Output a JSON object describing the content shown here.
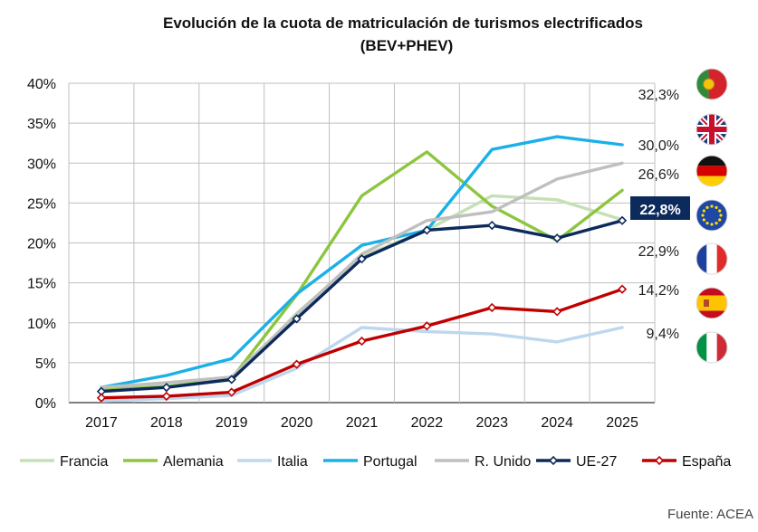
{
  "chart_data": {
    "type": "line",
    "title": "Evolución de la cuota de matriculación de turismos electrificados",
    "subtitle": "(BEV+PHEV)",
    "categories": [
      "2017",
      "2018",
      "2019",
      "2020",
      "2021",
      "2022",
      "2023",
      "2024",
      "2025"
    ],
    "y_tick_labels": [
      "0%",
      "5%",
      "10%",
      "15%",
      "20%",
      "25%",
      "30%",
      "35%",
      "40%"
    ],
    "ylim": [
      0,
      40
    ],
    "grid": true,
    "legend_position": "bottom",
    "source": "Fuente: ACEA",
    "series": [
      {
        "name": "Francia",
        "color": "#c5e0b4",
        "markers": false,
        "values": [
          1.7,
          2.2,
          2.8,
          11.2,
          18.3,
          21.6,
          25.9,
          25.4,
          22.9
        ]
      },
      {
        "name": "Alemania",
        "color": "#8cc63f",
        "markers": false,
        "values": [
          1.6,
          2.0,
          3.0,
          13.5,
          25.9,
          31.4,
          24.6,
          20.3,
          26.6
        ]
      },
      {
        "name": "Italia",
        "color": "#bdd7ee",
        "markers": false,
        "values": [
          0.2,
          0.5,
          0.9,
          4.3,
          9.4,
          8.9,
          8.6,
          7.6,
          9.4
        ]
      },
      {
        "name": "Portugal",
        "color": "#1ab0e8",
        "markers": false,
        "values": [
          1.9,
          3.4,
          5.5,
          13.6,
          19.7,
          21.6,
          31.7,
          33.3,
          32.3
        ]
      },
      {
        "name": "R. Unido",
        "color": "#bfbfbf",
        "markers": false,
        "values": [
          1.9,
          2.5,
          3.2,
          11.0,
          18.6,
          22.8,
          23.9,
          28.0,
          30.0
        ]
      },
      {
        "name": "UE-27",
        "color": "#0d2a5c",
        "markers": true,
        "values": [
          1.4,
          1.9,
          2.9,
          10.5,
          18.0,
          21.6,
          22.2,
          20.6,
          22.8
        ]
      },
      {
        "name": "España",
        "color": "#c00000",
        "markers": true,
        "values": [
          0.6,
          0.8,
          1.3,
          4.8,
          7.7,
          9.6,
          11.9,
          11.4,
          14.2
        ]
      }
    ],
    "end_labels": [
      {
        "text": "32,3%",
        "series": "Portugal",
        "highlight": false
      },
      {
        "text": "30,0%",
        "series": "R. Unido",
        "highlight": false
      },
      {
        "text": "26,6%",
        "series": "Alemania",
        "highlight": false
      },
      {
        "text": "22,8%",
        "series": "UE-27",
        "highlight": true
      },
      {
        "text": "22,9%",
        "series": "Francia",
        "highlight": false
      },
      {
        "text": "14,2%",
        "series": "España",
        "highlight": false
      },
      {
        "text": "9,4%",
        "series": "Italia",
        "highlight": false
      }
    ],
    "flags": [
      {
        "country": "Portugal",
        "icon": "portugal-flag-icon"
      },
      {
        "country": "Reino Unido",
        "icon": "united-kingdom-flag-icon"
      },
      {
        "country": "Alemania",
        "icon": "germany-flag-icon"
      },
      {
        "country": "Unión Europea",
        "icon": "european-union-flag-icon"
      },
      {
        "country": "Francia",
        "icon": "france-flag-icon"
      },
      {
        "country": "España",
        "icon": "spain-flag-icon"
      },
      {
        "country": "Italia",
        "icon": "italy-flag-icon"
      }
    ]
  }
}
